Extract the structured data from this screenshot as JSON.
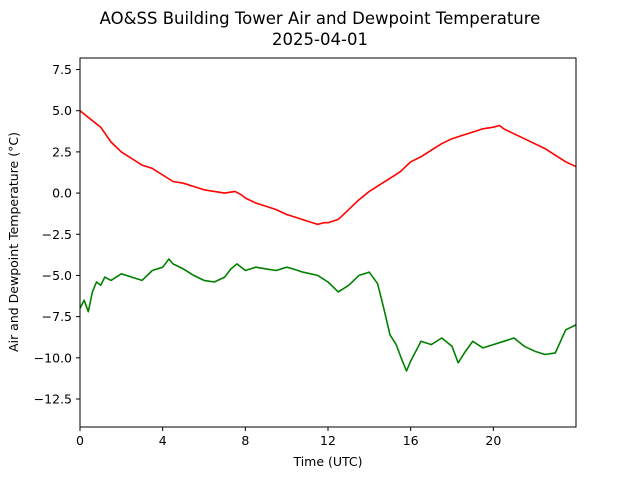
{
  "chart_data": {
    "type": "line",
    "title": "AO&SS Building Tower Air and Dewpoint Temperature",
    "subtitle": "2025-04-01",
    "xlabel": "Time (UTC)",
    "ylabel": "Air and Dewpoint Temperature (°C)",
    "xlim": [
      0,
      24
    ],
    "ylim": [
      -14.2,
      8.2
    ],
    "xticks": [
      0,
      4,
      8,
      12,
      16,
      20
    ],
    "xtick_labels": [
      "0",
      "4",
      "8",
      "12",
      "16",
      "20"
    ],
    "yticks": [
      -12.5,
      -10.0,
      -7.5,
      -5.0,
      -2.5,
      0.0,
      2.5,
      5.0,
      7.5
    ],
    "ytick_labels": [
      "−12.5",
      "−10.0",
      "−7.5",
      "−5.0",
      "−2.5",
      "0.0",
      "2.5",
      "5.0",
      "7.5"
    ],
    "grid": false,
    "series": [
      {
        "color": "#ff0000",
        "x": [
          0,
          0.5,
          1.0,
          1.5,
          2.0,
          2.5,
          3.0,
          3.5,
          4.0,
          4.5,
          5.0,
          5.5,
          6.0,
          6.5,
          7.0,
          7.5,
          7.8,
          8.0,
          8.5,
          9.0,
          9.5,
          10.0,
          10.5,
          11.0,
          11.5,
          11.8,
          12.0,
          12.5,
          13.0,
          13.5,
          14.0,
          14.5,
          15.0,
          15.5,
          16.0,
          16.5,
          17.0,
          17.5,
          18.0,
          18.5,
          19.0,
          19.5,
          20.0,
          20.3,
          20.5,
          21.0,
          21.5,
          22.0,
          22.5,
          23.0,
          23.5,
          24.0
        ],
        "values": [
          5.0,
          4.5,
          4.0,
          3.1,
          2.5,
          2.1,
          1.7,
          1.5,
          1.1,
          0.7,
          0.6,
          0.4,
          0.2,
          0.1,
          0.0,
          0.1,
          -0.1,
          -0.3,
          -0.6,
          -0.8,
          -1.0,
          -1.3,
          -1.5,
          -1.7,
          -1.9,
          -1.8,
          -1.8,
          -1.6,
          -1.0,
          -0.4,
          0.1,
          0.5,
          0.9,
          1.3,
          1.9,
          2.2,
          2.6,
          3.0,
          3.3,
          3.5,
          3.7,
          3.9,
          4.0,
          4.1,
          3.9,
          3.6,
          3.3,
          3.0,
          2.7,
          2.3,
          1.9,
          1.6
        ]
      },
      {
        "color": "#008000",
        "x": [
          0,
          0.2,
          0.4,
          0.6,
          0.8,
          1.0,
          1.2,
          1.5,
          2.0,
          2.5,
          3.0,
          3.5,
          4.0,
          4.3,
          4.5,
          5.0,
          5.5,
          6.0,
          6.5,
          7.0,
          7.3,
          7.6,
          8.0,
          8.5,
          9.0,
          9.5,
          10.0,
          10.3,
          10.8,
          11.5,
          12.0,
          12.5,
          13.0,
          13.5,
          14.0,
          14.4,
          14.7,
          15.0,
          15.3,
          15.6,
          15.8,
          16.0,
          16.5,
          17.0,
          17.5,
          18.0,
          18.3,
          18.6,
          19.0,
          19.5,
          20.0,
          20.5,
          21.0,
          21.5,
          22.0,
          22.5,
          23.0,
          23.5,
          24.0
        ],
        "values": [
          -7.0,
          -6.5,
          -7.2,
          -6.0,
          -5.4,
          -5.6,
          -5.1,
          -5.3,
          -4.9,
          -5.1,
          -5.3,
          -4.7,
          -4.5,
          -4.0,
          -4.3,
          -4.6,
          -5.0,
          -5.3,
          -5.4,
          -5.1,
          -4.6,
          -4.3,
          -4.7,
          -4.5,
          -4.6,
          -4.7,
          -4.5,
          -4.6,
          -4.8,
          -5.0,
          -5.4,
          -6.0,
          -5.6,
          -5.0,
          -4.8,
          -5.5,
          -7.0,
          -8.6,
          -9.2,
          -10.2,
          -10.8,
          -10.2,
          -9.0,
          -9.2,
          -8.8,
          -9.3,
          -10.3,
          -9.7,
          -9.0,
          -9.4,
          -9.2,
          -9.0,
          -8.8,
          -9.3,
          -9.6,
          -9.8,
          -9.7,
          -8.3,
          -8.0
        ]
      }
    ]
  }
}
